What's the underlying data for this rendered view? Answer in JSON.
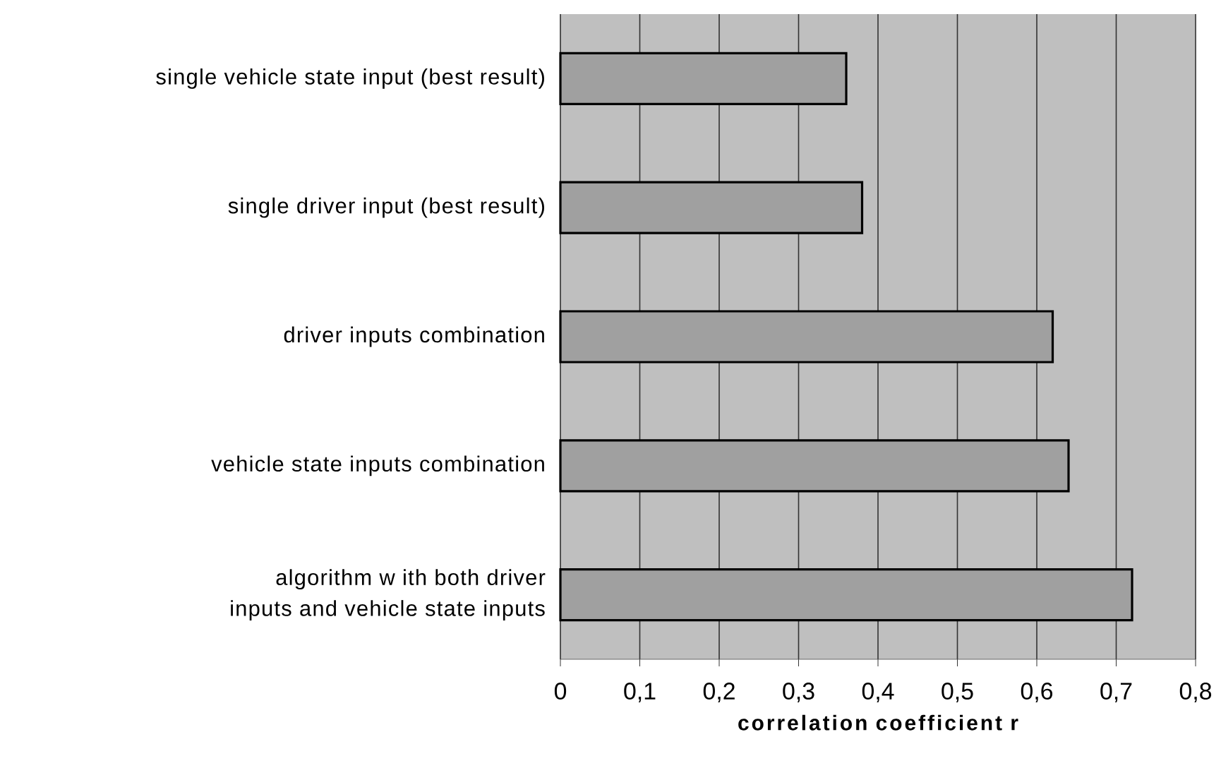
{
  "chart_data": {
    "type": "bar",
    "orientation": "horizontal",
    "xlabel": "correlation coefficient r",
    "categories": [
      "single vehicle state input (best result)",
      "single driver input (best result)",
      "driver inputs combination",
      "vehicle state inputs combination",
      "algorithm w ith both driver inputs and vehicle state inputs"
    ],
    "values": [
      0.36,
      0.38,
      0.62,
      0.64,
      0.72
    ],
    "color": "#a0a0a0",
    "xlim": [
      0,
      0.8
    ],
    "xticks": [
      0,
      {
        "value": 0.1,
        "label": "0,1"
      },
      {
        "value": 0.2,
        "label": "0,2"
      },
      {
        "value": 0.3,
        "label": "0,3"
      },
      {
        "value": 0.4,
        "label": "0,4"
      },
      {
        "value": 0.5,
        "label": "0,5"
      },
      {
        "value": 0.6,
        "label": "0,6"
      },
      {
        "value": 0.7,
        "label": "0,7"
      },
      {
        "value": 0.8,
        "label": "0,8"
      }
    ],
    "grid": "x"
  }
}
